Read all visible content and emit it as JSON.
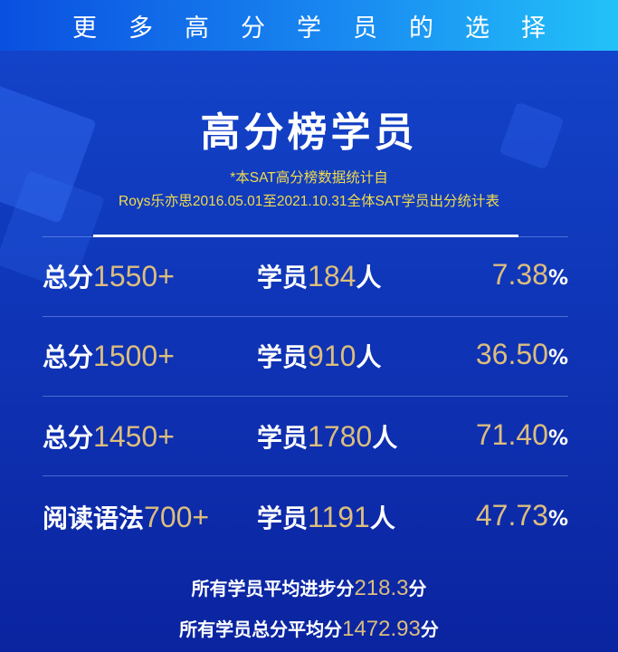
{
  "banner": {
    "text": "更多高分学员的选择"
  },
  "title": "高分榜学员",
  "subtitle": {
    "line1": "*本SAT高分榜数据统计自",
    "line2": "Roys乐亦思2016.05.01至2021.10.31全体SAT学员出分统计表"
  },
  "colors": {
    "gold": "#dcbd7e",
    "subtitle": "#f2dc4c",
    "background": "#0f36b8",
    "banner_end": "#22c2f8"
  },
  "rows": [
    {
      "label": "总分",
      "score": "1550+",
      "students_prefix": "学员",
      "count": "184",
      "unit": "人",
      "percent": "7.38",
      "percent_sign": "%"
    },
    {
      "label": "总分",
      "score": "1500+",
      "students_prefix": "学员",
      "count": "910",
      "unit": "人",
      "percent": "36.50",
      "percent_sign": "%"
    },
    {
      "label": "总分",
      "score": "1450+",
      "students_prefix": "学员",
      "count": "1780",
      "unit": "人",
      "percent": "71.40",
      "percent_sign": "%"
    },
    {
      "label": "阅读语法",
      "score": "700+",
      "students_prefix": "学员",
      "count": "1191",
      "unit": "人",
      "percent": "47.73",
      "percent_sign": "%"
    }
  ],
  "footer": [
    {
      "prefix": "所有学员平均进步分",
      "value": "218.3",
      "unit": "分"
    },
    {
      "prefix": "所有学员总分平均分",
      "value": "1472.93",
      "unit": "分"
    }
  ]
}
